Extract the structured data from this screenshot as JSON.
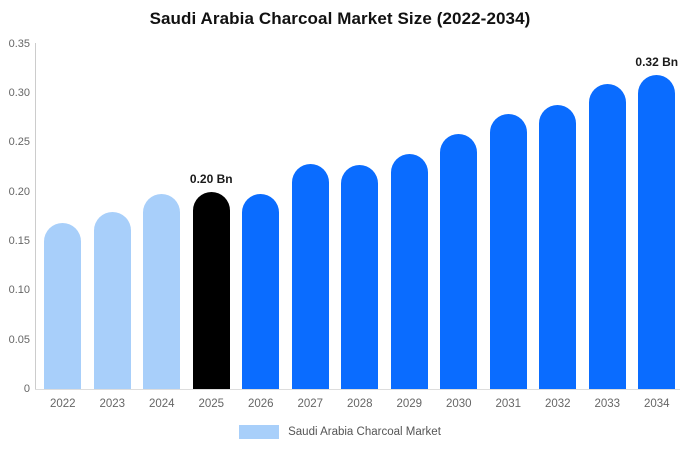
{
  "title": "Saudi Arabia Charcoal Market Size (2022-2034)",
  "chart_data": {
    "type": "bar",
    "title": "Saudi Arabia Charcoal Market Size (2022-2034)",
    "categories": [
      "2022",
      "2023",
      "2024",
      "2025",
      "2026",
      "2027",
      "2028",
      "2029",
      "2030",
      "2031",
      "2032",
      "2033",
      "2034"
    ],
    "values": [
      0.168,
      0.179,
      0.198,
      0.2,
      0.198,
      0.228,
      0.227,
      0.238,
      0.258,
      0.279,
      0.288,
      0.309,
      0.318
    ],
    "bar_colors": [
      "#A8CFFA",
      "#A8CFFA",
      "#A8CFFA",
      "#000000",
      "#0A6CFF",
      "#0A6CFF",
      "#0A6CFF",
      "#0A6CFF",
      "#0A6CFF",
      "#0A6CFF",
      "#0A6CFF",
      "#0A6CFF",
      "#0A6CFF"
    ],
    "data_labels": [
      {
        "category": "2025",
        "text": "0.20 Bn"
      },
      {
        "category": "2034",
        "text": "0.32 Bn"
      }
    ],
    "ylim": [
      0,
      0.35
    ],
    "yticks": [
      "0",
      "0.05",
      "0.10",
      "0.15",
      "0.20",
      "0.25",
      "0.30",
      "0.35"
    ],
    "grid": false,
    "legend": [
      {
        "label": "Saudi Arabia Charcoal Market",
        "color": "#A8CFFA"
      }
    ],
    "legend_position": "bottom",
    "colors": {
      "historical": "#A8CFFA",
      "base_year": "#000000",
      "forecast": "#0A6CFF",
      "axis_line": "#cccccc",
      "tick_text": "#666666"
    }
  }
}
